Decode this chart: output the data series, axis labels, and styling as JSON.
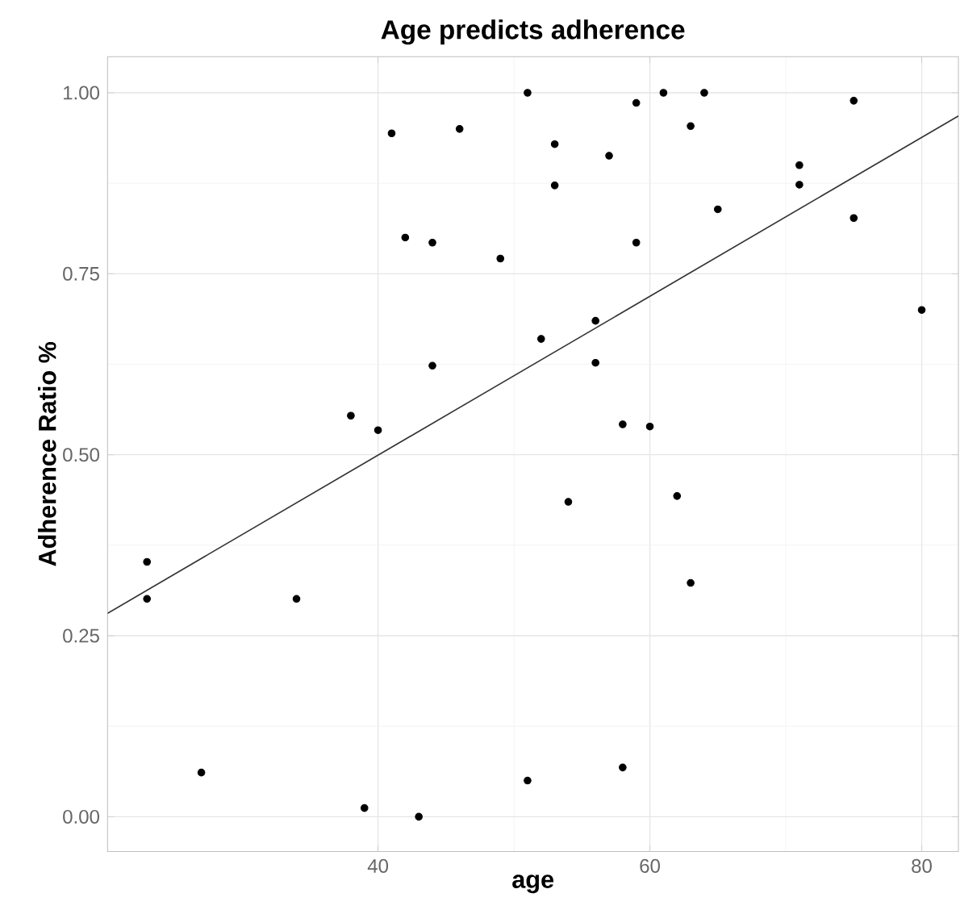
{
  "chart_data": {
    "type": "scatter",
    "title": "Age predicts adherence",
    "xlabel": "age",
    "ylabel": "Adherence Ratio %",
    "xlim": [
      20.1,
      82.7
    ],
    "ylim": [
      -0.048,
      1.05
    ],
    "xticks": [
      40,
      60,
      80
    ],
    "yticks": [
      {
        "value": 0,
        "label": "0.00"
      },
      {
        "value": 0.25,
        "label": "0.25"
      },
      {
        "value": 0.5,
        "label": "0.50"
      },
      {
        "value": 0.75,
        "label": "0.75"
      },
      {
        "value": 1,
        "label": "1.00"
      }
    ],
    "grid": true,
    "series": [
      {
        "color": "#000000",
        "marker": "circle",
        "x": [
          23,
          23,
          27,
          34,
          38,
          39,
          40,
          41,
          42,
          43,
          44,
          44,
          46,
          49,
          51,
          51,
          52,
          53,
          53,
          54,
          56,
          56,
          57,
          58,
          58,
          59,
          59,
          60,
          61,
          62,
          63,
          63,
          64,
          65,
          71,
          71,
          75,
          75,
          80
        ],
        "values": [
          0.352,
          0.301,
          0.061,
          0.301,
          0.554,
          0.012,
          0.534,
          0.944,
          0.8,
          0.0,
          0.793,
          0.623,
          0.95,
          0.771,
          1.0,
          0.05,
          0.66,
          0.929,
          0.872,
          0.435,
          0.685,
          0.627,
          0.913,
          0.542,
          0.068,
          0.986,
          0.793,
          0.539,
          1.0,
          0.443,
          0.954,
          0.323,
          1.0,
          0.839,
          0.9,
          0.873,
          0.989,
          0.827,
          0.7
        ]
      },
      {
        "type": "line",
        "color": "#333333",
        "line_style": "solid",
        "marker": "none",
        "x": [
          20.1,
          82.7
        ],
        "values": [
          0.281,
          0.968
        ]
      }
    ]
  }
}
